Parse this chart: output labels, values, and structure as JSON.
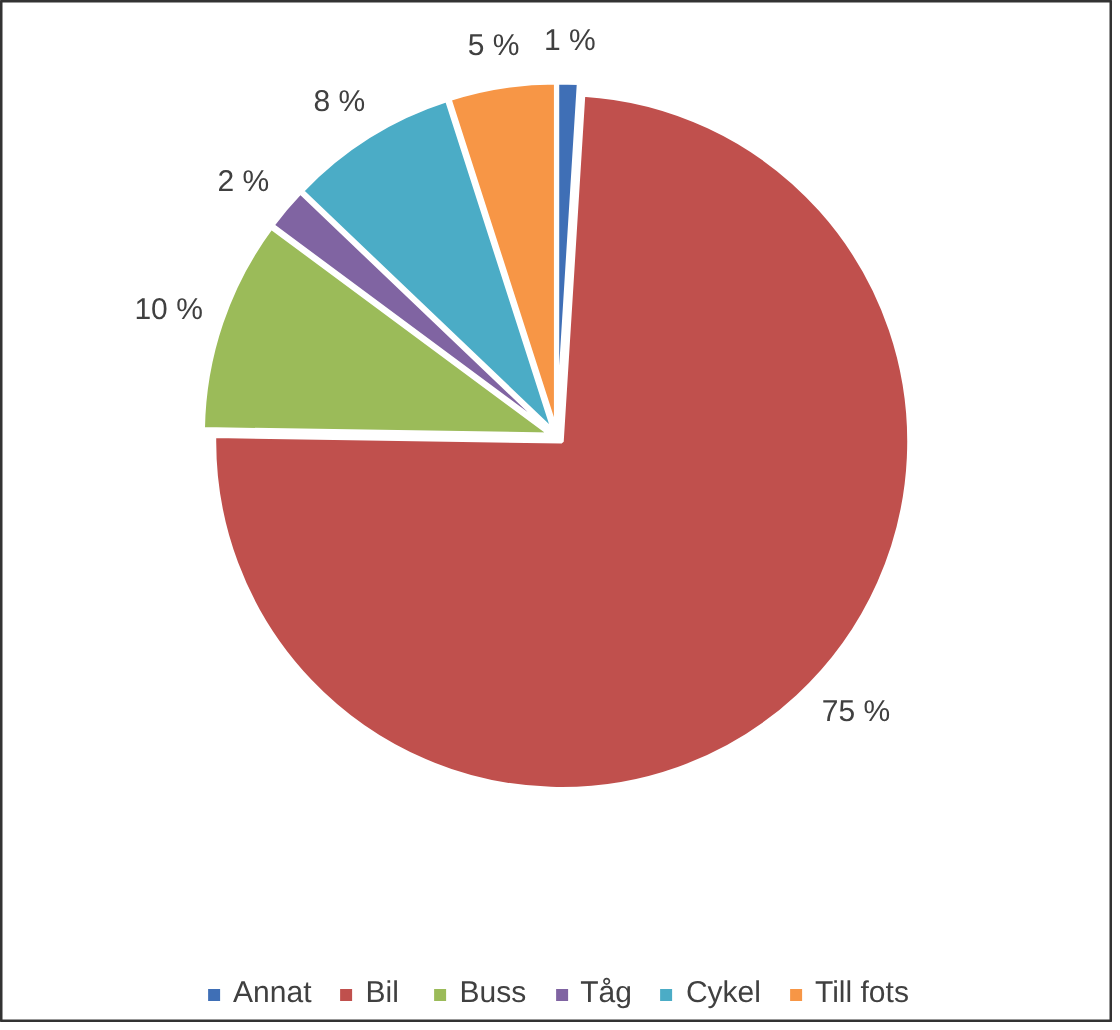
{
  "chart_data": {
    "type": "pie",
    "categories": [
      "Annat",
      "Bil",
      "Buss",
      "Tåg",
      "Cykel",
      "Till fots"
    ],
    "values": [
      1,
      75,
      10,
      2,
      8,
      5
    ],
    "colors": [
      "#3f6fb6",
      "#c0504d",
      "#9bbb59",
      "#8064a2",
      "#4bacc6",
      "#f79646"
    ],
    "value_labels": [
      "1 %",
      "75 %",
      "10 %",
      "2 %",
      "8 %",
      "5 %"
    ],
    "legend": "bottom"
  }
}
